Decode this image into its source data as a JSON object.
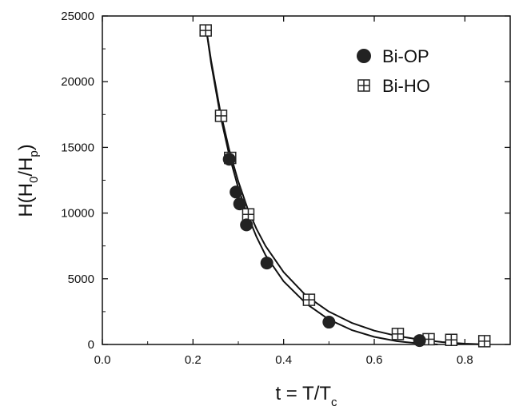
{
  "chart_data": {
    "type": "scatter",
    "xlabel": {
      "main": "t = T/T",
      "sub": "c"
    },
    "ylabel": {
      "main": "H(H",
      "sub1": "0",
      "mid": "/H",
      "sub2": "p",
      "end": ")"
    },
    "xlim": [
      0.0,
      0.9
    ],
    "ylim": [
      0,
      25000
    ],
    "xticks": [
      0.0,
      0.2,
      0.4,
      0.6,
      0.8
    ],
    "yticks": [
      0,
      5000,
      10000,
      15000,
      20000,
      25000
    ],
    "grid": false,
    "legend_position": "top-right",
    "series": [
      {
        "name": "Bi-OP",
        "marker": "filled-circle",
        "color": "#222222",
        "x": [
          0.28,
          0.295,
          0.303,
          0.318,
          0.363,
          0.5,
          0.7
        ],
        "y": [
          14100,
          11600,
          10700,
          9100,
          6200,
          1700,
          300
        ],
        "fit": [
          [
            0.228,
            24300
          ],
          [
            0.24,
            21400
          ],
          [
            0.26,
            17500
          ],
          [
            0.28,
            14400
          ],
          [
            0.3,
            11900
          ],
          [
            0.32,
            9900
          ],
          [
            0.34,
            8200
          ],
          [
            0.36,
            6800
          ],
          [
            0.4,
            4800
          ],
          [
            0.45,
            3100
          ],
          [
            0.5,
            1900
          ],
          [
            0.55,
            1100
          ],
          [
            0.6,
            580
          ],
          [
            0.65,
            250
          ],
          [
            0.7,
            70
          ],
          [
            0.74,
            0
          ]
        ]
      },
      {
        "name": "Bi-HO",
        "marker": "boxed-plus",
        "color": "#222222",
        "x": [
          0.228,
          0.262,
          0.282,
          0.322,
          0.456,
          0.652,
          0.72,
          0.77,
          0.843
        ],
        "y": [
          23900,
          17400,
          14200,
          9900,
          3400,
          800,
          400,
          350,
          250
        ],
        "fit": [
          [
            0.228,
            24300
          ],
          [
            0.24,
            21600
          ],
          [
            0.26,
            17800
          ],
          [
            0.28,
            14800
          ],
          [
            0.3,
            12400
          ],
          [
            0.32,
            10400
          ],
          [
            0.34,
            8800
          ],
          [
            0.36,
            7500
          ],
          [
            0.4,
            5500
          ],
          [
            0.45,
            3700
          ],
          [
            0.5,
            2500
          ],
          [
            0.55,
            1650
          ],
          [
            0.6,
            1050
          ],
          [
            0.65,
            650
          ],
          [
            0.7,
            370
          ],
          [
            0.75,
            180
          ],
          [
            0.8,
            60
          ],
          [
            0.85,
            0
          ]
        ]
      }
    ]
  }
}
